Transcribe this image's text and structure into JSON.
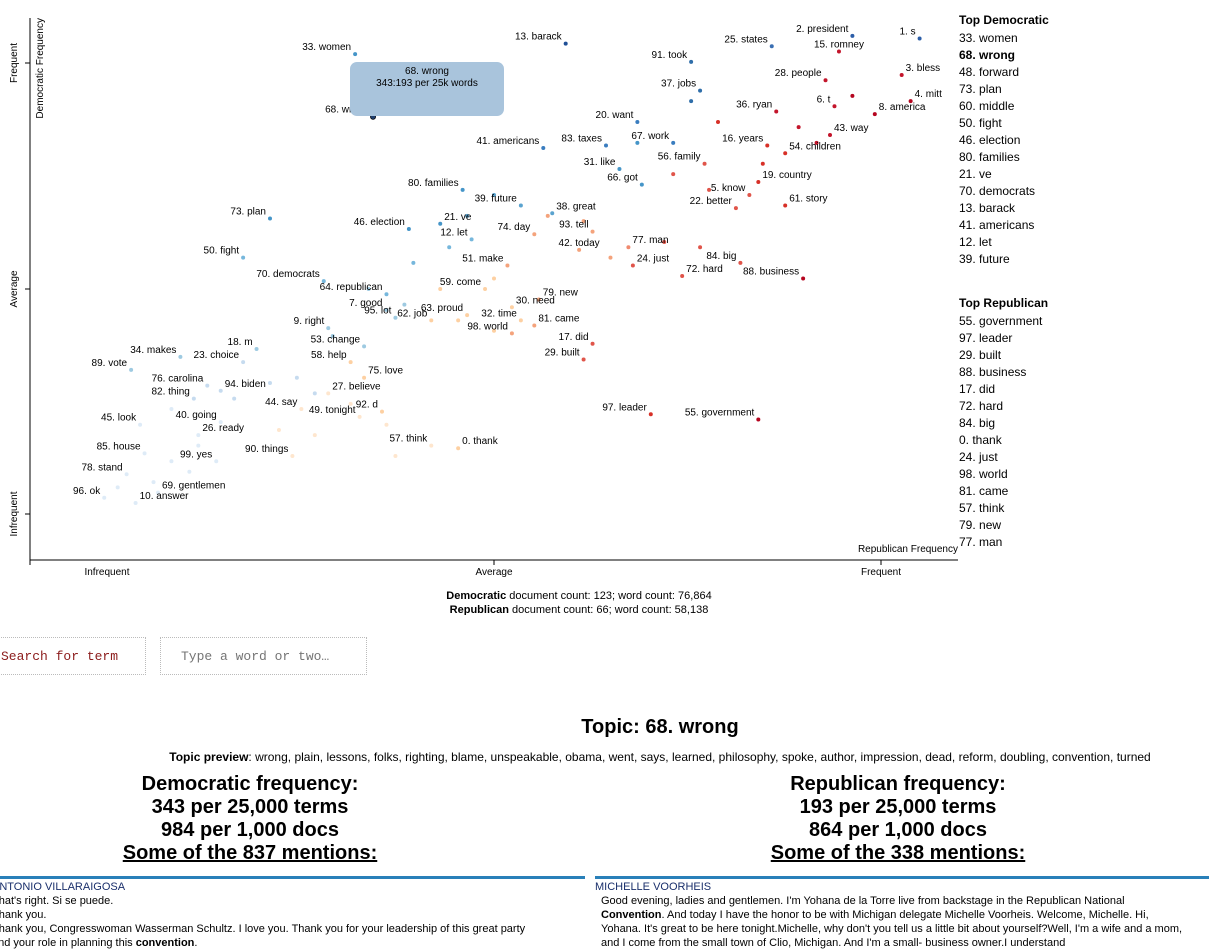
{
  "chart_data": {
    "type": "scatter",
    "x_axis": {
      "label": "Republican Frequency",
      "ticks": [
        "Infrequent",
        "Average",
        "Frequent"
      ]
    },
    "y_axis": {
      "label": "Democratic Frequency",
      "ticks": [
        "Frequent",
        "Average",
        "Infrequent"
      ]
    },
    "points": [
      {
        "label": "2. president",
        "x": 0.9,
        "y": 0.985,
        "color": "#2c5ea8",
        "anchor": "end"
      },
      {
        "label": "1. s",
        "x": 0.975,
        "y": 0.98,
        "color": "#2c5ea8",
        "anchor": "end"
      },
      {
        "label": "25. states",
        "x": 0.81,
        "y": 0.965,
        "color": "#3a6fb3",
        "anchor": "end"
      },
      {
        "label": "15. romney",
        "x": 0.885,
        "y": 0.955,
        "color": "#c3152b",
        "anchor": "middle"
      },
      {
        "label": "13. barack",
        "x": 0.58,
        "y": 0.97,
        "color": "#1f4f96",
        "anchor": "end"
      },
      {
        "label": "91. took",
        "x": 0.72,
        "y": 0.935,
        "color": "#2f6ea9",
        "anchor": "end"
      },
      {
        "label": "3. bless",
        "x": 0.955,
        "y": 0.91,
        "color": "#c3152b",
        "anchor": "start"
      },
      {
        "label": "28. people",
        "x": 0.87,
        "y": 0.9,
        "color": "#c3152b",
        "anchor": "end"
      },
      {
        "label": "37. jobs",
        "x": 0.73,
        "y": 0.88,
        "color": "#2f6ea9",
        "anchor": "end"
      },
      {
        "label": "4. mitt",
        "x": 0.965,
        "y": 0.86,
        "color": "#b5051f",
        "anchor": "start"
      },
      {
        "label": "6. t",
        "x": 0.88,
        "y": 0.85,
        "color": "#c3152b",
        "anchor": "end"
      },
      {
        "label": "36. ryan",
        "x": 0.815,
        "y": 0.84,
        "color": "#c3152b",
        "anchor": "end"
      },
      {
        "label": "8. america",
        "x": 0.925,
        "y": 0.835,
        "color": "#b5051f",
        "anchor": "start"
      },
      {
        "label": "20. want",
        "x": 0.66,
        "y": 0.82,
        "color": "#3a7dbf",
        "anchor": "end"
      },
      {
        "label": "43. way",
        "x": 0.875,
        "y": 0.795,
        "color": "#c3152b",
        "anchor": "start"
      },
      {
        "label": "67. work",
        "x": 0.7,
        "y": 0.78,
        "color": "#3a7dbf",
        "anchor": "end"
      },
      {
        "label": "16. years",
        "x": 0.805,
        "y": 0.775,
        "color": "#d73027",
        "anchor": "end"
      },
      {
        "label": "83. taxes",
        "x": 0.625,
        "y": 0.775,
        "color": "#3a7dbf",
        "anchor": "end"
      },
      {
        "label": "41. americans",
        "x": 0.555,
        "y": 0.77,
        "color": "#3a7dbf",
        "anchor": "end"
      },
      {
        "label": "54. children",
        "x": 0.825,
        "y": 0.76,
        "color": "#d73027",
        "anchor": "start"
      },
      {
        "label": "56. family",
        "x": 0.735,
        "y": 0.74,
        "color": "#e0554a",
        "anchor": "end"
      },
      {
        "label": "31. like",
        "x": 0.64,
        "y": 0.73,
        "color": "#4595c8",
        "anchor": "end"
      },
      {
        "label": "19. country",
        "x": 0.795,
        "y": 0.705,
        "color": "#d73027",
        "anchor": "start"
      },
      {
        "label": "66. got",
        "x": 0.665,
        "y": 0.7,
        "color": "#4595c8",
        "anchor": "end"
      },
      {
        "label": "5. know",
        "x": 0.785,
        "y": 0.68,
        "color": "#e0554a",
        "anchor": "end"
      },
      {
        "label": "80. families",
        "x": 0.465,
        "y": 0.69,
        "color": "#4595c8",
        "anchor": "end"
      },
      {
        "label": "22. better",
        "x": 0.77,
        "y": 0.655,
        "color": "#e0554a",
        "anchor": "end"
      },
      {
        "label": "39. future",
        "x": 0.53,
        "y": 0.66,
        "color": "#5aa3cf",
        "anchor": "end"
      },
      {
        "label": "61. story",
        "x": 0.825,
        "y": 0.66,
        "color": "#d73027",
        "anchor": "start"
      },
      {
        "label": "38. great",
        "x": 0.565,
        "y": 0.645,
        "color": "#5aa3cf",
        "anchor": "start"
      },
      {
        "label": "73. plan",
        "x": 0.25,
        "y": 0.635,
        "color": "#4595c8",
        "anchor": "end"
      },
      {
        "label": "21. ve",
        "x": 0.44,
        "y": 0.625,
        "color": "#4595c8",
        "anchor": "start"
      },
      {
        "label": "46. election",
        "x": 0.405,
        "y": 0.615,
        "color": "#4595c8",
        "anchor": "end"
      },
      {
        "label": "93. tell",
        "x": 0.61,
        "y": 0.61,
        "color": "#f4a37c",
        "anchor": "end"
      },
      {
        "label": "74. day",
        "x": 0.545,
        "y": 0.605,
        "color": "#f4a37c",
        "anchor": "end"
      },
      {
        "label": "12. let",
        "x": 0.475,
        "y": 0.595,
        "color": "#76b7dc",
        "anchor": "end"
      },
      {
        "label": "50. fight",
        "x": 0.22,
        "y": 0.56,
        "color": "#76b7dc",
        "anchor": "end"
      },
      {
        "label": "77. man",
        "x": 0.65,
        "y": 0.58,
        "color": "#f08a6f",
        "anchor": "start"
      },
      {
        "label": "42. today",
        "x": 0.595,
        "y": 0.575,
        "color": "#f4a37c",
        "anchor": "middle"
      },
      {
        "label": "84. big",
        "x": 0.775,
        "y": 0.55,
        "color": "#e0554a",
        "anchor": "end"
      },
      {
        "label": "24. just",
        "x": 0.655,
        "y": 0.545,
        "color": "#e0554a",
        "anchor": "start"
      },
      {
        "label": "51. make",
        "x": 0.515,
        "y": 0.545,
        "color": "#f4a37c",
        "anchor": "end"
      },
      {
        "label": "72. hard",
        "x": 0.71,
        "y": 0.525,
        "color": "#e0554a",
        "anchor": "start"
      },
      {
        "label": "88. business",
        "x": 0.845,
        "y": 0.52,
        "color": "#b5051f",
        "anchor": "end"
      },
      {
        "label": "70. democrats",
        "x": 0.31,
        "y": 0.515,
        "color": "#76b7dc",
        "anchor": "end"
      },
      {
        "label": "59. come",
        "x": 0.49,
        "y": 0.5,
        "color": "#fdd0a2",
        "anchor": "end"
      },
      {
        "label": "79. new",
        "x": 0.55,
        "y": 0.48,
        "color": "#f4a37c",
        "anchor": "start"
      },
      {
        "label": "64. republican",
        "x": 0.38,
        "y": 0.49,
        "color": "#76b7dc",
        "anchor": "end"
      },
      {
        "label": "30. need",
        "x": 0.52,
        "y": 0.465,
        "color": "#fdd0a2",
        "anchor": "start"
      },
      {
        "label": "7. good",
        "x": 0.38,
        "y": 0.46,
        "color": "#9ecae1",
        "anchor": "end"
      },
      {
        "label": "63. proud",
        "x": 0.47,
        "y": 0.45,
        "color": "#fdd0a2",
        "anchor": "end"
      },
      {
        "label": "95. lot",
        "x": 0.39,
        "y": 0.445,
        "color": "#9ecae1",
        "anchor": "end"
      },
      {
        "label": "62. job",
        "x": 0.43,
        "y": 0.44,
        "color": "#fdd0a2",
        "anchor": "end"
      },
      {
        "label": "32. time",
        "x": 0.53,
        "y": 0.44,
        "color": "#fdd0a2",
        "anchor": "end"
      },
      {
        "label": "81. came",
        "x": 0.545,
        "y": 0.43,
        "color": "#f4a37c",
        "anchor": "start"
      },
      {
        "label": "9. right",
        "x": 0.315,
        "y": 0.425,
        "color": "#9ecae1",
        "anchor": "end"
      },
      {
        "label": "98. world",
        "x": 0.52,
        "y": 0.415,
        "color": "#f4a37c",
        "anchor": "end"
      },
      {
        "label": "17. did",
        "x": 0.61,
        "y": 0.395,
        "color": "#e0554a",
        "anchor": "end"
      },
      {
        "label": "18. m",
        "x": 0.235,
        "y": 0.385,
        "color": "#9ecae1",
        "anchor": "end"
      },
      {
        "label": "53. change",
        "x": 0.355,
        "y": 0.39,
        "color": "#9ecae1",
        "anchor": "end"
      },
      {
        "label": "34. makes",
        "x": 0.15,
        "y": 0.37,
        "color": "#9ecae1",
        "anchor": "end"
      },
      {
        "label": "29. built",
        "x": 0.6,
        "y": 0.365,
        "color": "#e0554a",
        "anchor": "end"
      },
      {
        "label": "23. choice",
        "x": 0.22,
        "y": 0.36,
        "color": "#c6dbef",
        "anchor": "end"
      },
      {
        "label": "58. help",
        "x": 0.34,
        "y": 0.36,
        "color": "#fdd0a2",
        "anchor": "end"
      },
      {
        "label": "89. vote",
        "x": 0.095,
        "y": 0.345,
        "color": "#9ecae1",
        "anchor": "end"
      },
      {
        "label": "75. love",
        "x": 0.355,
        "y": 0.33,
        "color": "#fdd0a2",
        "anchor": "start"
      },
      {
        "label": "76. carolina",
        "x": 0.18,
        "y": 0.315,
        "color": "#c6dbef",
        "anchor": "end"
      },
      {
        "label": "94. biden",
        "x": 0.195,
        "y": 0.305,
        "color": "#c6dbef",
        "anchor": "start"
      },
      {
        "label": "27. believe",
        "x": 0.315,
        "y": 0.3,
        "color": "#fee6ce",
        "anchor": "start"
      },
      {
        "label": "82. thing",
        "x": 0.165,
        "y": 0.29,
        "color": "#c6dbef",
        "anchor": "end"
      },
      {
        "label": "97. leader",
        "x": 0.675,
        "y": 0.26,
        "color": "#d73027",
        "anchor": "end"
      },
      {
        "label": "92. d",
        "x": 0.375,
        "y": 0.265,
        "color": "#fdd0a2",
        "anchor": "end"
      },
      {
        "label": "55. government",
        "x": 0.795,
        "y": 0.25,
        "color": "#b5051f",
        "anchor": "end"
      },
      {
        "label": "44. say",
        "x": 0.285,
        "y": 0.27,
        "color": "#fee6ce",
        "anchor": "end"
      },
      {
        "label": "49. tonight",
        "x": 0.35,
        "y": 0.255,
        "color": "#fee6ce",
        "anchor": "end"
      },
      {
        "label": "40. going",
        "x": 0.195,
        "y": 0.245,
        "color": "#deebf7",
        "anchor": "end"
      },
      {
        "label": "45. look",
        "x": 0.105,
        "y": 0.24,
        "color": "#deebf7",
        "anchor": "end"
      },
      {
        "label": "26. ready",
        "x": 0.17,
        "y": 0.22,
        "color": "#deebf7",
        "anchor": "start"
      },
      {
        "label": "57. think",
        "x": 0.43,
        "y": 0.2,
        "color": "#fee6ce",
        "anchor": "end"
      },
      {
        "label": "0. thank",
        "x": 0.46,
        "y": 0.195,
        "color": "#fdd0a2",
        "anchor": "start"
      },
      {
        "label": "85. house",
        "x": 0.11,
        "y": 0.185,
        "color": "#deebf7",
        "anchor": "end"
      },
      {
        "label": "90. things",
        "x": 0.275,
        "y": 0.18,
        "color": "#fee6ce",
        "anchor": "end"
      },
      {
        "label": "99. yes",
        "x": 0.19,
        "y": 0.17,
        "color": "#deebf7",
        "anchor": "end"
      },
      {
        "label": "78. stand",
        "x": 0.09,
        "y": 0.145,
        "color": "#deebf7",
        "anchor": "end"
      },
      {
        "label": "69. gentlemen",
        "x": 0.125,
        "y": 0.11,
        "color": "#deebf7",
        "anchor": "start"
      },
      {
        "label": "96. ok",
        "x": 0.065,
        "y": 0.1,
        "color": "#deebf7",
        "anchor": "end"
      },
      {
        "label": "10. answer",
        "x": 0.1,
        "y": 0.09,
        "color": "#deebf7",
        "anchor": "start"
      },
      {
        "label": "33. women",
        "x": 0.345,
        "y": 0.95,
        "color": "#4595c8",
        "anchor": "end"
      },
      {
        "label": "60. middle",
        "x": 0.42,
        "y": 0.89,
        "color": "#4595c8",
        "anchor": "end"
      },
      {
        "label": "68. wrong",
        "x": 0.365,
        "y": 0.83,
        "color": "#1f3f6f",
        "anchor": "end"
      }
    ],
    "unlabeled_points": [
      {
        "x": 0.72,
        "y": 0.86,
        "color": "#2f6ea9"
      },
      {
        "x": 0.75,
        "y": 0.82,
        "color": "#d73027"
      },
      {
        "x": 0.66,
        "y": 0.78,
        "color": "#4595c8"
      },
      {
        "x": 0.7,
        "y": 0.72,
        "color": "#e0554a"
      },
      {
        "x": 0.74,
        "y": 0.69,
        "color": "#e0554a"
      },
      {
        "x": 0.5,
        "y": 0.68,
        "color": "#5aa3cf"
      },
      {
        "x": 0.47,
        "y": 0.64,
        "color": "#5aa3cf"
      },
      {
        "x": 0.56,
        "y": 0.64,
        "color": "#f4a37c"
      },
      {
        "x": 0.6,
        "y": 0.63,
        "color": "#f4a37c"
      },
      {
        "x": 0.63,
        "y": 0.56,
        "color": "#f4a37c"
      },
      {
        "x": 0.45,
        "y": 0.58,
        "color": "#76b7dc"
      },
      {
        "x": 0.41,
        "y": 0.55,
        "color": "#76b7dc"
      },
      {
        "x": 0.36,
        "y": 0.5,
        "color": "#9ecae1"
      },
      {
        "x": 0.44,
        "y": 0.5,
        "color": "#fdd0a2"
      },
      {
        "x": 0.5,
        "y": 0.52,
        "color": "#fdd0a2"
      },
      {
        "x": 0.4,
        "y": 0.47,
        "color": "#9ecae1"
      },
      {
        "x": 0.46,
        "y": 0.44,
        "color": "#fdd0a2"
      },
      {
        "x": 0.5,
        "y": 0.42,
        "color": "#fdd0a2"
      },
      {
        "x": 0.32,
        "y": 0.41,
        "color": "#9ecae1"
      },
      {
        "x": 0.28,
        "y": 0.33,
        "color": "#c6dbef"
      },
      {
        "x": 0.3,
        "y": 0.3,
        "color": "#c6dbef"
      },
      {
        "x": 0.25,
        "y": 0.32,
        "color": "#c6dbef"
      },
      {
        "x": 0.21,
        "y": 0.29,
        "color": "#c6dbef"
      },
      {
        "x": 0.14,
        "y": 0.27,
        "color": "#deebf7"
      },
      {
        "x": 0.17,
        "y": 0.2,
        "color": "#deebf7"
      },
      {
        "x": 0.14,
        "y": 0.17,
        "color": "#deebf7"
      },
      {
        "x": 0.26,
        "y": 0.23,
        "color": "#fee6ce"
      },
      {
        "x": 0.3,
        "y": 0.22,
        "color": "#fee6ce"
      },
      {
        "x": 0.34,
        "y": 0.28,
        "color": "#fee6ce"
      },
      {
        "x": 0.38,
        "y": 0.24,
        "color": "#fee6ce"
      },
      {
        "x": 0.39,
        "y": 0.18,
        "color": "#fee6ce"
      },
      {
        "x": 0.12,
        "y": 0.13,
        "color": "#deebf7"
      },
      {
        "x": 0.08,
        "y": 0.12,
        "color": "#deebf7"
      },
      {
        "x": 0.16,
        "y": 0.15,
        "color": "#deebf7"
      },
      {
        "x": 0.8,
        "y": 0.74,
        "color": "#d73027"
      },
      {
        "x": 0.86,
        "y": 0.78,
        "color": "#c3152b"
      },
      {
        "x": 0.84,
        "y": 0.81,
        "color": "#c3152b"
      },
      {
        "x": 0.9,
        "y": 0.87,
        "color": "#b5051f"
      },
      {
        "x": 0.69,
        "y": 0.59,
        "color": "#e0554a"
      },
      {
        "x": 0.73,
        "y": 0.58,
        "color": "#e0554a"
      }
    ],
    "highlight": "68. wrong",
    "tooltip": {
      "line1": "68. wrong",
      "line2": "343:193 per 25k words"
    },
    "top_democratic": {
      "title": "Top Democratic",
      "items": [
        "33. women",
        "68. wrong",
        "48. forward",
        "73. plan",
        "60. middle",
        "50. fight",
        "46. election",
        "80. families",
        "21. ve",
        "70. democrats",
        "13. barack",
        "41. americans",
        "12. let",
        "39. future"
      ]
    },
    "top_republican": {
      "title": "Top Republican",
      "items": [
        "55. government",
        "97. leader",
        "29. built",
        "88. business",
        "17. did",
        "72. hard",
        "84. big",
        "0. thank",
        "24. just",
        "98. world",
        "81. came",
        "57. think",
        "79. new",
        "77. man"
      ]
    },
    "counts": {
      "dem_label": "Democratic",
      "dem_text": " document count: 123; word count: 76,864",
      "rep_label": "Republican",
      "rep_text": " document count: 66; word count: 58,138"
    }
  },
  "search": {
    "button_label": "Search for term",
    "placeholder": "Type a word or two…"
  },
  "topic": {
    "title": "Topic: 68. wrong",
    "preview_label": "Topic preview",
    "preview_text": ": wrong, plain, lessons, folks, righting, blame, unspeakable, obama, went, says, learned, philosophy, spoke, author, impression, dead, reform, doubling, convention, turned"
  },
  "dem_freq": {
    "title": "Democratic frequency:",
    "terms": "343 per 25,000 terms",
    "docs": "984 per 1,000 docs",
    "mentions": "Some of the 837 mentions:"
  },
  "rep_freq": {
    "title": "Republican frequency:",
    "terms": "193 per 25,000 terms",
    "docs": "864 per 1,000 docs",
    "mentions": "Some of the 338 mentions:"
  },
  "snippets": {
    "left": {
      "speaker": "ANTONIO VILLARAIGOSA",
      "lines": [
        "That's right. Si se puede.",
        "Thank you.",
        "Thank you, Congresswoman Wasserman Schultz. I love you. Thank you for your leadership of this great party"
      ],
      "last_pre": "and your role in planning this ",
      "last_bold": "convention",
      "last_post": "."
    },
    "right": {
      "speaker": "MICHELLE VOORHEIS",
      "pre": "Good evening, ladies and gentlemen. I'm Yohana de la Torre live from backstage in the Republican National ",
      "bold": "Convention",
      "post": ". And today I have the honor to be with Michigan delegate Michelle Voorheis. Welcome, Michelle. Hi, Yohana. It's great to be here tonight.Michelle, why don't you tell us a little bit about yourself?Well, I'm a wife and a mom, and I come from the small town of Clio, Michigan. And I'm a small- business owner.I understand"
    }
  }
}
